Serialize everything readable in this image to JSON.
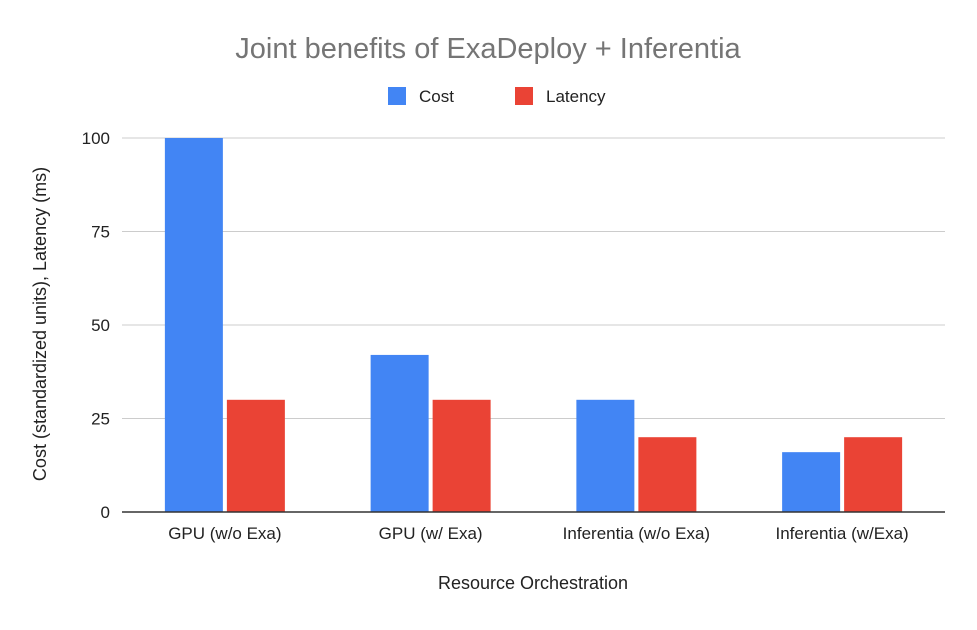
{
  "chart_data": {
    "type": "bar",
    "title": "Joint benefits of ExaDeploy + Inferentia",
    "xlabel": "Resource Orchestration",
    "ylabel": "Cost (standardized units), Latency (ms)",
    "categories": [
      "GPU (w/o Exa)",
      "GPU (w/ Exa)",
      "Inferentia (w/o Exa)",
      "Inferentia (w/Exa)"
    ],
    "series": [
      {
        "name": "Cost",
        "color": "#4285f4",
        "values": [
          100,
          42,
          30,
          16
        ]
      },
      {
        "name": "Latency",
        "color": "#ea4335",
        "values": [
          30,
          30,
          20,
          20
        ]
      }
    ],
    "ylim": [
      0,
      100
    ],
    "yticks": [
      0,
      25,
      50,
      75,
      100
    ],
    "ytick_labels": [
      "0",
      "25",
      "50",
      "75",
      "100"
    ],
    "grid": true,
    "legend_position": "top-center"
  }
}
